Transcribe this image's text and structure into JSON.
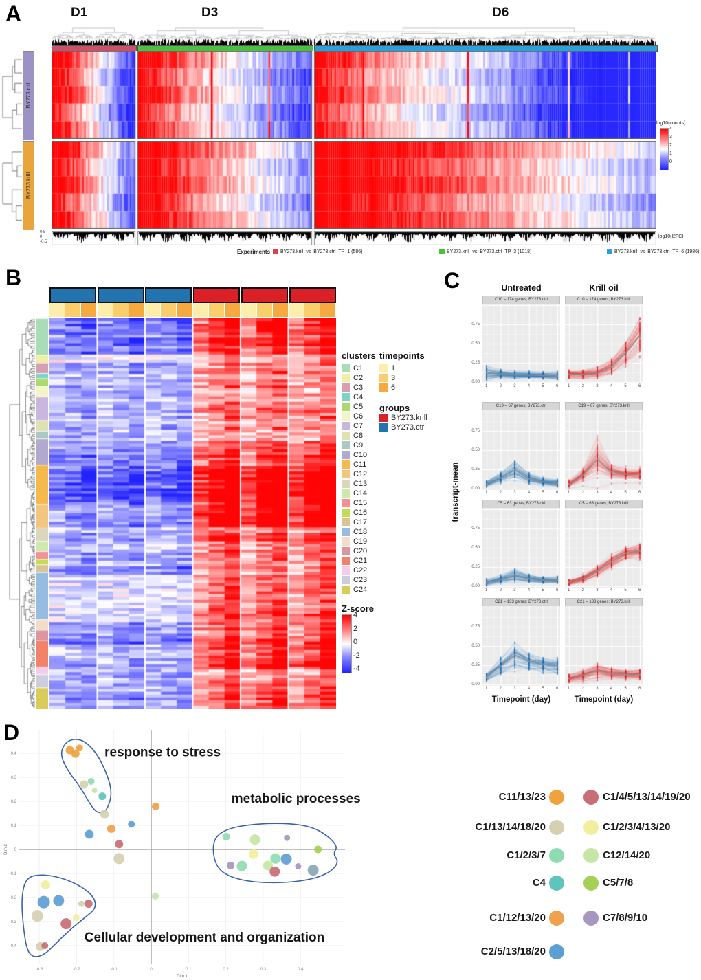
{
  "chart_data": [
    {
      "id": "A",
      "type": "heatmap",
      "label": "A",
      "day_labels": [
        "D1",
        "D3",
        "D6"
      ],
      "row_blocks": [
        "BY273.ctrl",
        "BY273.krill"
      ],
      "section_colors": [
        "#cd5066",
        "#4cbf40",
        "#2aa0dc"
      ],
      "row_block_colors": [
        "#9c92c6",
        "#e9a43c"
      ],
      "colorbar": {
        "title": "log10(counts)",
        "ticks": [
          "4",
          "3",
          "2",
          "1",
          "0"
        ],
        "high": "#ff0000",
        "mid": "#ffffff",
        "low": "#2323ff"
      },
      "bottom_track": {
        "label": "log10(l2FC)",
        "axis_ticks": [
          "0.5",
          "0",
          "-0.5"
        ]
      },
      "legend": {
        "title": "Experiments",
        "items": [
          {
            "label": "BY273.krill_vs_BY273.ctrl_TP_1 (586)",
            "color": "#e0404e"
          },
          {
            "label": "BY273.krill_vs_BY273.ctrl_TP_3 (1018)",
            "color": "#46c437"
          },
          {
            "label": "BY273.krill_vs_BY273.ctrl_TP_6 (1986)",
            "color": "#2aa0dc"
          }
        ]
      }
    },
    {
      "id": "B",
      "type": "heatmap",
      "label": "B",
      "legend_clusters": {
        "title": "clusters",
        "items": [
          {
            "label": "C1",
            "color": "#aadcb8"
          },
          {
            "label": "C2",
            "color": "#eff0a6"
          },
          {
            "label": "C3",
            "color": "#d6a0af"
          },
          {
            "label": "C4",
            "color": "#7ed3c6"
          },
          {
            "label": "C5",
            "color": "#abd96e"
          },
          {
            "label": "C6",
            "color": "#f4f4c9"
          },
          {
            "label": "C7",
            "color": "#c9b7dd"
          },
          {
            "label": "C8",
            "color": "#dfe2b0"
          },
          {
            "label": "C9",
            "color": "#aac9c3"
          },
          {
            "label": "C10",
            "color": "#b2aacc"
          },
          {
            "label": "C11",
            "color": "#f5b94d"
          },
          {
            "label": "C12",
            "color": "#f3c57e"
          },
          {
            "label": "C13",
            "color": "#dad7bc"
          },
          {
            "label": "C14",
            "color": "#cdeaad"
          },
          {
            "label": "C15",
            "color": "#f29294"
          },
          {
            "label": "C16",
            "color": "#c3dc53"
          },
          {
            "label": "C17",
            "color": "#dac492"
          },
          {
            "label": "C18",
            "color": "#96bde0"
          },
          {
            "label": "C19",
            "color": "#f3dcca"
          },
          {
            "label": "C20",
            "color": "#db96a0"
          },
          {
            "label": "C21",
            "color": "#f28368"
          },
          {
            "label": "C22",
            "color": "#f6cde9"
          },
          {
            "label": "C23",
            "color": "#cccddd"
          },
          {
            "label": "C24",
            "color": "#dbcb58"
          }
        ]
      },
      "legend_timepoints": {
        "title": "timepoints",
        "items": [
          {
            "label": "1",
            "color": "#fdeeac"
          },
          {
            "label": "3",
            "color": "#fbce6c"
          },
          {
            "label": "6",
            "color": "#f6a93e"
          }
        ]
      },
      "legend_groups": {
        "title": "groups",
        "items": [
          {
            "label": "BY273.krill",
            "color": "#da2128"
          },
          {
            "label": "BY273.ctrl",
            "color": "#2273ae"
          }
        ]
      },
      "colorbar": {
        "title": "Z-score",
        "ticks": [
          "4",
          "2",
          "0",
          "-2",
          "-4"
        ],
        "high": "#ff0000",
        "mid": "#ffffff",
        "low": "#2323ff"
      },
      "column_groups": [
        "ctrl",
        "ctrl",
        "ctrl",
        "krill",
        "krill",
        "krill"
      ]
    },
    {
      "id": "C",
      "type": "line",
      "label": "C",
      "col_titles": [
        "Untreated",
        "Krill oil"
      ],
      "ylabel": "transcript-mean",
      "xlabel": "Timepoint (day)",
      "yticks": [
        "0.75",
        "0.50",
        "0.25",
        "0.00"
      ],
      "x": [
        1,
        2,
        3,
        4,
        5,
        6
      ],
      "series_colors": {
        "ctrl": "#1f6eb5",
        "krill": "#e02227"
      },
      "facets": [
        {
          "title": "C10 – 174 genes; BY273.ctrl",
          "group": "ctrl",
          "mean": [
            0.12,
            0.105,
            0.095,
            0.09,
            0.085,
            0.08
          ],
          "spread": [
            0.09,
            0.05,
            0.05,
            0.04,
            0.04,
            0.05
          ]
        },
        {
          "title": "C10 – 174 genes; BY273.krill",
          "group": "krill",
          "mean": [
            0.1,
            0.1,
            0.12,
            0.2,
            0.38,
            0.6
          ],
          "spread": [
            0.05,
            0.05,
            0.07,
            0.1,
            0.16,
            0.25
          ]
        },
        {
          "title": "C19 – 67 genes; BY273.ctrl",
          "group": "ctrl",
          "mean": [
            0.06,
            0.14,
            0.24,
            0.13,
            0.09,
            0.07
          ],
          "spread": [
            0.04,
            0.07,
            0.13,
            0.07,
            0.05,
            0.05
          ]
        },
        {
          "title": "C19 – 67 genes; BY273.krill",
          "group": "krill",
          "mean": [
            0.06,
            0.18,
            0.38,
            0.22,
            0.19,
            0.19
          ],
          "spread": [
            0.04,
            0.09,
            0.26,
            0.1,
            0.08,
            0.08
          ]
        },
        {
          "title": "C5 – 63 genes; BY273.ctrl",
          "group": "ctrl",
          "mean": [
            0.05,
            0.09,
            0.14,
            0.1,
            0.08,
            0.08
          ],
          "spread": [
            0.04,
            0.05,
            0.08,
            0.05,
            0.04,
            0.04
          ]
        },
        {
          "title": "C5 – 63 genes; BY273.krill",
          "group": "krill",
          "mean": [
            0.05,
            0.1,
            0.2,
            0.32,
            0.43,
            0.46
          ],
          "spread": [
            0.04,
            0.06,
            0.09,
            0.1,
            0.1,
            0.12
          ]
        },
        {
          "title": "C21 – 133 genes; BY273.ctrl",
          "group": "ctrl",
          "mean": [
            0.1,
            0.24,
            0.38,
            0.3,
            0.26,
            0.24
          ],
          "spread": [
            0.06,
            0.12,
            0.2,
            0.12,
            0.11,
            0.12
          ]
        },
        {
          "title": "C21 – 133 genes; BY273.krill",
          "group": "krill",
          "mean": [
            0.08,
            0.12,
            0.18,
            0.14,
            0.13,
            0.13
          ],
          "spread": [
            0.05,
            0.07,
            0.1,
            0.07,
            0.06,
            0.06
          ]
        }
      ]
    },
    {
      "id": "D",
      "type": "scatter",
      "label": "D",
      "xlabel": "Dim.1",
      "ylabel": "Dim.2",
      "xticks": [
        "-0.3",
        "-0.2",
        "-0.1",
        "0",
        "0.1",
        "0.2",
        "0.3",
        "0.4"
      ],
      "yticks": [
        "0.4",
        "0.3",
        "0.2",
        "0.1",
        "0",
        "-0.1",
        "-0.2",
        "-0.3",
        "-0.4"
      ],
      "annotations": [
        {
          "text": "response to stress",
          "x": -0.125,
          "y": 0.405
        },
        {
          "text": "metabolic processes",
          "x": 0.215,
          "y": 0.211
        },
        {
          "text": "Cellular development and organization",
          "x": -0.179,
          "y": -0.366
        }
      ],
      "colors": {
        "orange": "#f0a23f",
        "red": "#c96d76",
        "beige": "#d5d0b2",
        "yellow": "#f1ef9d",
        "mint": "#8edcb2",
        "palegreen": "#c5e6a7",
        "teal": "#5fc4bb",
        "ygreen": "#a4d056",
        "orange2": "#f0a14c",
        "purple": "#a796bd",
        "blue": "#5e9fd3",
        "slate": "#8aa6b5"
      },
      "legend_left": [
        {
          "label": "C11/13/23",
          "color": "#f0a23f"
        },
        {
          "label": "C1/13/14/18/20",
          "color": "#d5d0b2"
        },
        {
          "label": "C1/2/3/7",
          "color": "#8edcb2"
        },
        {
          "label": "C4",
          "color": "#5fc4bb"
        },
        {
          "label": "C1/12/13/20",
          "color": "#f0a14c"
        },
        {
          "label": "C2/5/13/18/20",
          "color": "#5e9fd3"
        }
      ],
      "legend_right": [
        {
          "label": "C1/4/5/13/14/19/20",
          "color": "#c96d76"
        },
        {
          "label": "C1/2/3/4/13/20",
          "color": "#f1ef9d"
        },
        {
          "label": "C12/14/20",
          "color": "#c5e6a7"
        },
        {
          "label": "C5/7/8",
          "color": "#a4d056"
        },
        {
          "label": "C7/8/9/10",
          "color": "#a796bd"
        }
      ],
      "points": [
        {
          "x": -0.218,
          "y": 0.413,
          "r": 6,
          "c": "orange"
        },
        {
          "x": -0.203,
          "y": 0.398,
          "r": 6,
          "c": "orange"
        },
        {
          "x": -0.192,
          "y": 0.422,
          "r": 5,
          "c": "orange"
        },
        {
          "x": -0.18,
          "y": 0.27,
          "r": 6,
          "c": "beige"
        },
        {
          "x": -0.161,
          "y": 0.283,
          "r": 5,
          "c": "mint"
        },
        {
          "x": -0.152,
          "y": 0.246,
          "r": 4,
          "c": "palegreen"
        },
        {
          "x": -0.131,
          "y": 0.221,
          "r": 5.5,
          "c": "teal"
        },
        {
          "x": -0.125,
          "y": 0.146,
          "r": 6.5,
          "c": "beige"
        },
        {
          "x": -0.053,
          "y": 0.105,
          "r": 5,
          "c": "blue"
        },
        {
          "x": -0.107,
          "y": 0.086,
          "r": 6,
          "c": "orange2"
        },
        {
          "x": -0.166,
          "y": 0.063,
          "r": 6.5,
          "c": "blue"
        },
        {
          "x": -0.086,
          "y": 0.022,
          "r": 6,
          "c": "red"
        },
        {
          "x": -0.086,
          "y": -0.038,
          "r": 8,
          "c": "beige"
        },
        {
          "x": 0.012,
          "y": 0.179,
          "r": 5.5,
          "c": "orange2"
        },
        {
          "x": 0.011,
          "y": -0.194,
          "r": 5,
          "c": "palegreen"
        },
        {
          "x": 0.201,
          "y": 0.053,
          "r": 5.5,
          "c": "mint"
        },
        {
          "x": 0.278,
          "y": 0.041,
          "r": 7.5,
          "c": "palegreen"
        },
        {
          "x": 0.364,
          "y": 0.048,
          "r": 4.5,
          "c": "purple"
        },
        {
          "x": 0.274,
          "y": -0.019,
          "r": 7,
          "c": "yellow"
        },
        {
          "x": 0.333,
          "y": -0.038,
          "r": 7.5,
          "c": "mint"
        },
        {
          "x": 0.362,
          "y": -0.04,
          "r": 8,
          "c": "blue"
        },
        {
          "x": 0.313,
          "y": -0.067,
          "r": 7,
          "c": "palegreen"
        },
        {
          "x": 0.213,
          "y": -0.067,
          "r": 5.5,
          "c": "purple"
        },
        {
          "x": 0.243,
          "y": -0.069,
          "r": 7.5,
          "c": "mint"
        },
        {
          "x": 0.331,
          "y": -0.092,
          "r": 7.5,
          "c": "red"
        },
        {
          "x": 0.394,
          "y": -0.07,
          "r": 4.5,
          "c": "purple"
        },
        {
          "x": 0.434,
          "y": -0.086,
          "r": 8,
          "c": "slate"
        },
        {
          "x": 0.447,
          "y": 0.0,
          "r": 5.5,
          "c": "ygreen"
        },
        {
          "x": -0.283,
          "y": -0.147,
          "r": 6.5,
          "c": "yellow"
        },
        {
          "x": -0.288,
          "y": -0.219,
          "r": 9,
          "c": "blue"
        },
        {
          "x": -0.248,
          "y": -0.213,
          "r": 8,
          "c": "blue"
        },
        {
          "x": -0.187,
          "y": -0.226,
          "r": 4.5,
          "c": "beige"
        },
        {
          "x": -0.168,
          "y": -0.226,
          "r": 6,
          "c": "red"
        },
        {
          "x": -0.305,
          "y": -0.276,
          "r": 8.5,
          "c": "beige"
        },
        {
          "x": -0.201,
          "y": -0.283,
          "r": 5,
          "c": "yellow"
        },
        {
          "x": -0.228,
          "y": -0.309,
          "r": 8,
          "c": "red"
        },
        {
          "x": -0.297,
          "y": -0.404,
          "r": 6.5,
          "c": "beige"
        },
        {
          "x": -0.285,
          "y": -0.4,
          "r": 5,
          "c": "red"
        }
      ],
      "outlines": [
        [
          [
            -0.245,
            0.4
          ],
          [
            -0.225,
            0.455
          ],
          [
            -0.185,
            0.46
          ],
          [
            -0.145,
            0.4
          ],
          [
            -0.115,
            0.3
          ],
          [
            -0.105,
            0.23
          ],
          [
            -0.118,
            0.165
          ],
          [
            -0.135,
            0.148
          ],
          [
            -0.155,
            0.165
          ],
          [
            -0.19,
            0.26
          ],
          [
            -0.225,
            0.33
          ]
        ],
        [
          [
            0.165,
            0.04
          ],
          [
            0.2,
            0.085
          ],
          [
            0.27,
            0.105
          ],
          [
            0.36,
            0.11
          ],
          [
            0.43,
            0.095
          ],
          [
            0.475,
            0.055
          ],
          [
            0.5,
            0.01
          ],
          [
            0.487,
            -0.018
          ],
          [
            0.503,
            -0.052
          ],
          [
            0.48,
            -0.095
          ],
          [
            0.43,
            -0.125
          ],
          [
            0.35,
            -0.14
          ],
          [
            0.26,
            -0.135
          ],
          [
            0.195,
            -0.105
          ],
          [
            0.168,
            -0.05
          ]
        ],
        [
          [
            -0.335,
            -0.115
          ],
          [
            -0.29,
            -0.103
          ],
          [
            -0.235,
            -0.12
          ],
          [
            -0.185,
            -0.155
          ],
          [
            -0.152,
            -0.2
          ],
          [
            -0.148,
            -0.245
          ],
          [
            -0.175,
            -0.28
          ],
          [
            -0.215,
            -0.33
          ],
          [
            -0.255,
            -0.39
          ],
          [
            -0.285,
            -0.437
          ],
          [
            -0.315,
            -0.45
          ],
          [
            -0.333,
            -0.42
          ],
          [
            -0.343,
            -0.32
          ],
          [
            -0.348,
            -0.2
          ]
        ]
      ],
      "outline_color": "#3a62a8"
    }
  ]
}
